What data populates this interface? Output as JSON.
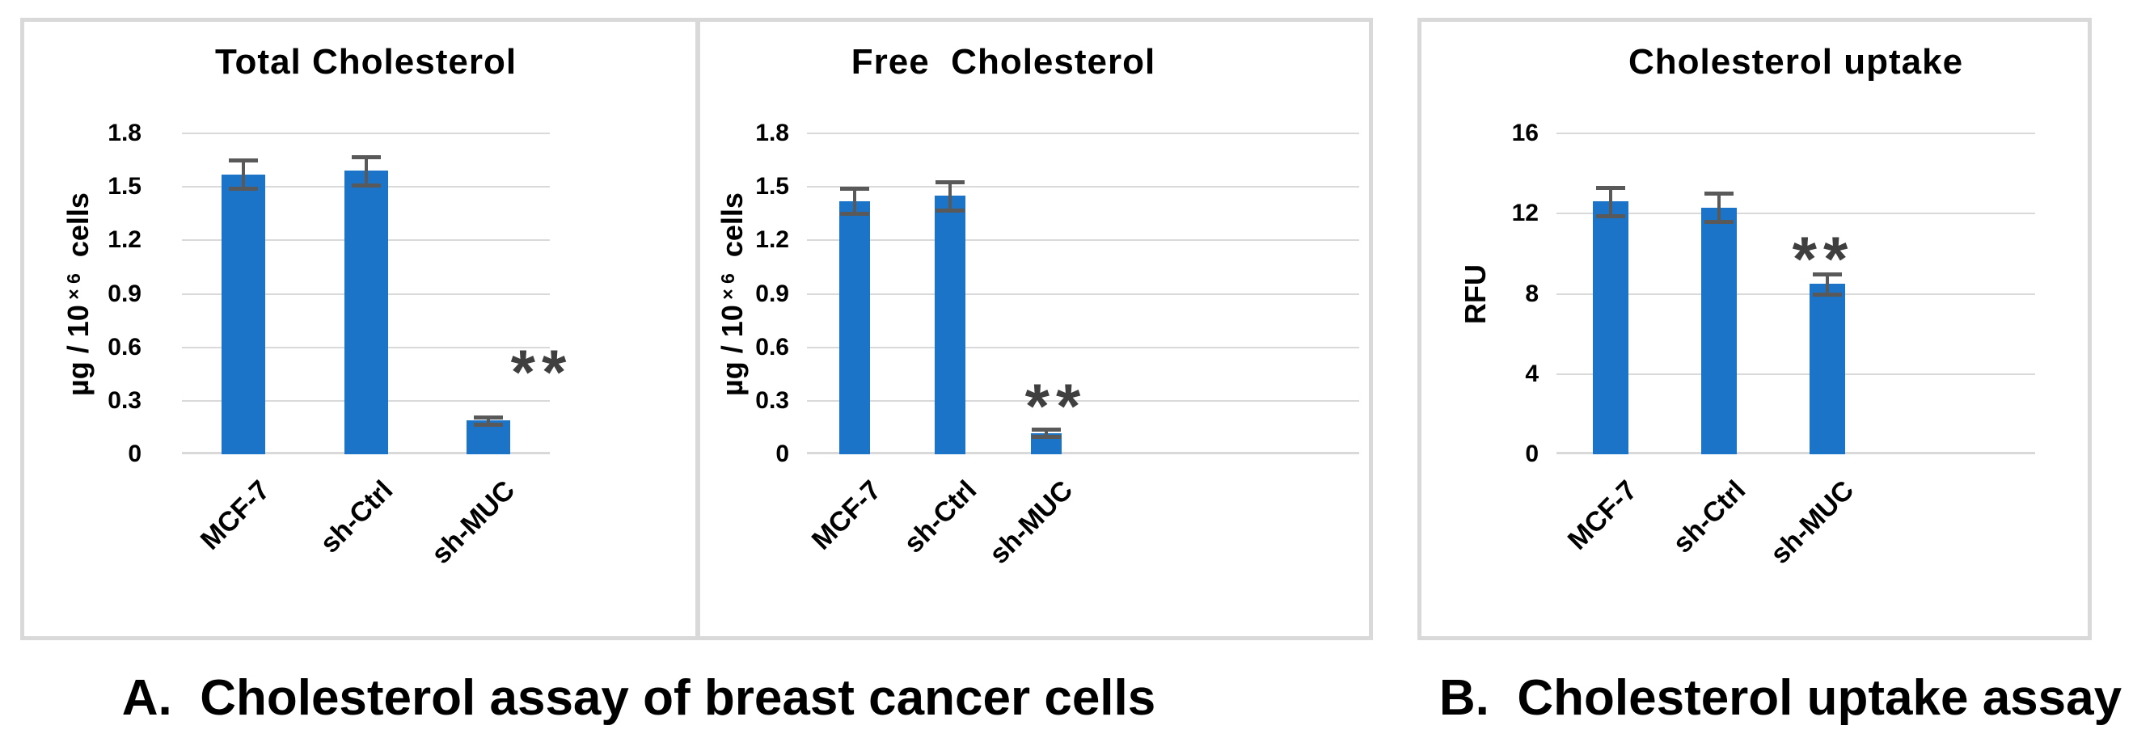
{
  "figure": {
    "caption_a": "A.  Cholesterol assay of breast cancer cells",
    "caption_b": "B.  Cholesterol uptake assay"
  },
  "colors": {
    "bar": "#1B74C8",
    "error_bar": "#595959",
    "gridline": "#D9D9D9",
    "panel_border": "#D9D9D9",
    "significance": "#3F3F3F",
    "text": "#000000",
    "background": "#FFFFFF"
  },
  "chart_data": [
    {
      "type": "bar",
      "panel": "A",
      "title": "Total Cholesterol",
      "ylabel": "µg / 10 ×6 cells",
      "ylabel_parts": {
        "pre": "µg / 10",
        "sup": " × 6",
        "post": "  cells"
      },
      "ylim": [
        0,
        1.8
      ],
      "yticks": [
        0,
        0.3,
        0.6,
        0.9,
        1.2,
        1.5,
        1.8
      ],
      "ytick_labels": [
        "0",
        "0.3",
        "0.6",
        "0.9",
        "1.2",
        "1.5",
        "1.8"
      ],
      "categories": [
        "MCF-7",
        "sh-Ctrl",
        "sh-MUC"
      ],
      "values": [
        1.57,
        1.59,
        0.19
      ],
      "errors": [
        0.08,
        0.08,
        0.02
      ],
      "significance": [
        "",
        "",
        "**"
      ],
      "grid": true,
      "legend": false
    },
    {
      "type": "bar",
      "panel": "A",
      "title": "Free  Cholesterol",
      "ylabel": "µg / 10 ×6 cells",
      "ylabel_parts": {
        "pre": "µg / 10",
        "sup": " × 6",
        "post": "  cells"
      },
      "ylim": [
        0,
        1.8
      ],
      "yticks": [
        0,
        0.3,
        0.6,
        0.9,
        1.2,
        1.5,
        1.8
      ],
      "ytick_labels": [
        "0",
        "0.3",
        "0.6",
        "0.9",
        "1.2",
        "1.5",
        "1.8"
      ],
      "categories": [
        "MCF-7",
        "sh-Ctrl",
        "sh-MUC"
      ],
      "values": [
        1.42,
        1.45,
        0.12
      ],
      "errors": [
        0.07,
        0.08,
        0.02
      ],
      "significance": [
        "",
        "",
        "**"
      ],
      "grid": true,
      "legend": false
    },
    {
      "type": "bar",
      "panel": "B",
      "title": "Cholesterol uptake",
      "ylabel": "RFU",
      "ylabel_parts": {
        "pre": "RFU",
        "sup": "",
        "post": ""
      },
      "ylim": [
        0,
        16
      ],
      "yticks": [
        0,
        4,
        8,
        12,
        16
      ],
      "ytick_labels": [
        "0",
        "4",
        "8",
        "12",
        "16"
      ],
      "categories": [
        "MCF-7",
        "sh-Ctrl",
        "sh-MUC"
      ],
      "values": [
        12.6,
        12.3,
        8.5
      ],
      "errors": [
        0.7,
        0.7,
        0.5
      ],
      "significance": [
        "",
        "",
        "**"
      ],
      "grid": true,
      "legend": false
    }
  ]
}
